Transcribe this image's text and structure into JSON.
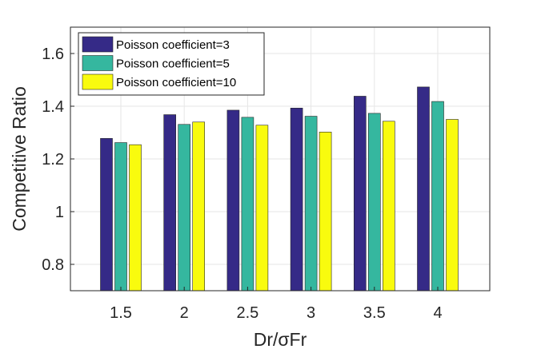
{
  "chart_data": {
    "type": "bar",
    "categories": [
      "1.5",
      "2",
      "2.5",
      "3",
      "3.5",
      "4"
    ],
    "series": [
      {
        "name": "Poisson coefficient=3",
        "color": "#352a87",
        "values": [
          1.278,
          1.368,
          1.385,
          1.393,
          1.438,
          1.473
        ]
      },
      {
        "name": "Poisson coefficient=5",
        "color": "#35b79f",
        "values": [
          1.262,
          1.331,
          1.358,
          1.362,
          1.373,
          1.418
        ]
      },
      {
        "name": "Poisson coefficient=10",
        "color": "#f9fb0e",
        "values": [
          1.254,
          1.34,
          1.328,
          1.302,
          1.343,
          1.35
        ]
      }
    ],
    "xlabel": "Dr/σFr",
    "ylabel": "Competitive Ratio",
    "ylim": [
      0.7,
      1.7
    ],
    "yticks": [
      0.8,
      1,
      1.2,
      1.4,
      1.6
    ],
    "ytick_labels": [
      "0.8",
      "1",
      "1.2",
      "1.4",
      "1.6"
    ],
    "grid": true,
    "legend_position": "top-left"
  }
}
